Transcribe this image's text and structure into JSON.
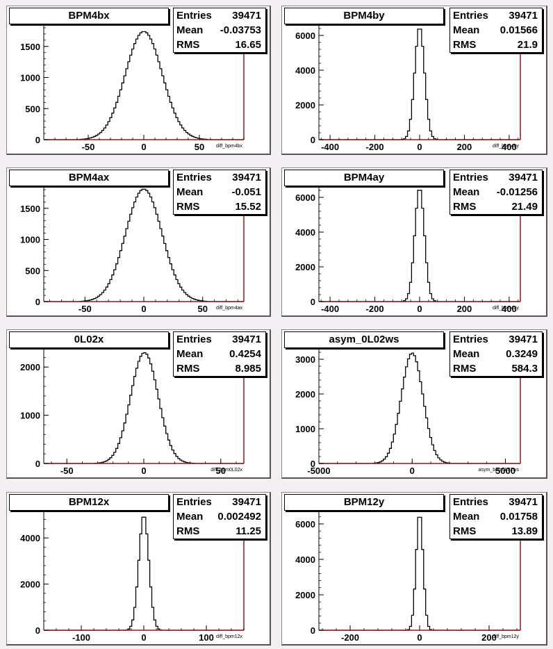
{
  "chart_data": [
    {
      "type": "histogram",
      "title": "BPM4bx",
      "varname": "diff_bpm4bx",
      "stats": {
        "entries": "39471",
        "mean": "-0.03753",
        "rms": "16.65"
      },
      "xlim": [
        -90,
        90
      ],
      "ylim": [
        0,
        1900
      ],
      "xticks": [
        -50,
        0,
        50
      ],
      "yticks": [
        0,
        500,
        1000,
        1500
      ],
      "peak": 1740,
      "center": 0,
      "sigma": 16.65
    },
    {
      "type": "histogram",
      "title": "BPM4by",
      "varname": "diff_bpm4by",
      "stats": {
        "entries": "39471",
        "mean": "0.01566",
        "rms": "21.9"
      },
      "xlim": [
        -450,
        450
      ],
      "ylim": [
        0,
        6800
      ],
      "xticks": [
        -400,
        -200,
        0,
        200,
        400
      ],
      "yticks": [
        0,
        2000,
        4000,
        6000
      ],
      "peak": 6500,
      "center": 0,
      "sigma": 21.9
    },
    {
      "type": "histogram",
      "title": "BPM4ax",
      "varname": "diff_bpm4ax",
      "stats": {
        "entries": "39471",
        "mean": "-0.051",
        "rms": "15.52"
      },
      "xlim": [
        -85,
        85
      ],
      "ylim": [
        0,
        1900
      ],
      "xticks": [
        -50,
        0,
        50
      ],
      "yticks": [
        0,
        500,
        1000,
        1500
      ],
      "peak": 1810,
      "center": 0,
      "sigma": 15.52
    },
    {
      "type": "histogram",
      "title": "BPM4ay",
      "varname": "diff_bpm4ay",
      "stats": {
        "entries": "39471",
        "mean": "-0.01256",
        "rms": "21.49"
      },
      "xlim": [
        -450,
        450
      ],
      "ylim": [
        0,
        6800
      ],
      "xticks": [
        -400,
        -200,
        0,
        200,
        400
      ],
      "yticks": [
        0,
        2000,
        4000,
        6000
      ],
      "peak": 6550,
      "center": 0,
      "sigma": 21.49
    },
    {
      "type": "histogram",
      "title": "0L02x",
      "varname": "diff_bpm0L02x",
      "stats": {
        "entries": "39471",
        "mean": "0.4254",
        "rms": "8.985"
      },
      "xlim": [
        -65,
        65
      ],
      "ylim": [
        0,
        2450
      ],
      "xticks": [
        -50,
        0,
        50
      ],
      "yticks": [
        0,
        1000,
        2000
      ],
      "peak": 2300,
      "center": 0.4,
      "sigma": 8.985
    },
    {
      "type": "histogram",
      "title": "asym_0L02ws",
      "varname": "asym_bpm0L02ws",
      "stats": {
        "entries": "39471",
        "mean": "0.3249",
        "rms": "584.3"
      },
      "xlim": [
        -5000,
        5800
      ],
      "ylim": [
        0,
        3400
      ],
      "xticks": [
        -5000,
        0,
        5000
      ],
      "yticks": [
        0,
        1000,
        2000,
        3000
      ],
      "peak": 3180,
      "center": 0,
      "sigma": 584.3
    },
    {
      "type": "histogram",
      "title": "BPM12x",
      "varname": "diff_bpm12x",
      "stats": {
        "entries": "39471",
        "mean": "0.002492",
        "rms": "11.25"
      },
      "xlim": [
        -160,
        160
      ],
      "ylim": [
        0,
        5300
      ],
      "xticks": [
        -100,
        0,
        100
      ],
      "yticks": [
        0,
        2000,
        4000
      ],
      "peak": 5000,
      "center": 0,
      "sigma": 8.0
    },
    {
      "type": "histogram",
      "title": "BPM12y",
      "varname": "diff_bpm12y",
      "stats": {
        "entries": "39471",
        "mean": "0.01758",
        "rms": "13.89"
      },
      "xlim": [
        -290,
        290
      ],
      "ylim": [
        0,
        6900
      ],
      "xticks": [
        -200,
        0,
        200
      ],
      "yticks": [
        0,
        2000,
        4000,
        6000
      ],
      "peak": 6650,
      "center": 0,
      "sigma": 10.0
    }
  ],
  "labels": {
    "entries": "Entries",
    "mean": "Mean",
    "rms": "RMS"
  }
}
